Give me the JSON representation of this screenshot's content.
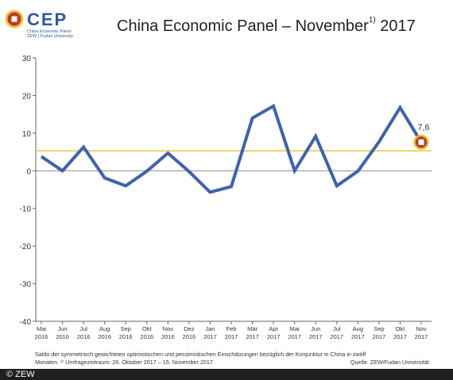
{
  "header": {
    "logo_text": "CEP",
    "logo_sub_1": "China Economic Panel",
    "logo_sub_2": "ZEW | Fudan University",
    "title_main": "China Economic Panel – November",
    "title_sup": "1)",
    "title_year": "2017"
  },
  "colors": {
    "series_line": "#3d63ad",
    "average_line": "#e8c840",
    "zero_line": "#888888",
    "marker_fill": "#c0392b",
    "marker_ring": "#e8c840",
    "brand": "#2e5b9e"
  },
  "chart_data": {
    "type": "line",
    "title": "",
    "xlabel": "",
    "ylabel": "",
    "ylim": [
      -40,
      30
    ],
    "yticks": [
      30,
      20,
      10,
      0,
      -10,
      -20,
      -30,
      -40
    ],
    "grid": false,
    "categories": [
      [
        "Mai",
        "2016"
      ],
      [
        "Jun",
        "2016"
      ],
      [
        "Jul",
        "2016"
      ],
      [
        "Aug",
        "2016"
      ],
      [
        "Sep",
        "2016"
      ],
      [
        "Okt",
        "2016"
      ],
      [
        "Nov",
        "2016"
      ],
      [
        "Dez",
        "2016"
      ],
      [
        "Jan",
        "2017"
      ],
      [
        "Feb",
        "2017"
      ],
      [
        "Mär",
        "2017"
      ],
      [
        "Apr",
        "2017"
      ],
      [
        "Mai",
        "2017"
      ],
      [
        "Jun",
        "2017"
      ],
      [
        "Jul",
        "2017"
      ],
      [
        "Aug",
        "2017"
      ],
      [
        "Sep",
        "2017"
      ],
      [
        "Okt",
        "2017"
      ],
      [
        "Nov",
        "2017"
      ]
    ],
    "series": [
      {
        "values": [
          3.8,
          0.0,
          6.3,
          -1.9,
          -4.0,
          -0.1,
          4.7,
          -0.2,
          -5.7,
          -4.2,
          14.0,
          17.2,
          0.0,
          9.2,
          -4.0,
          -0.1,
          7.7,
          16.8,
          7.6
        ]
      }
    ],
    "reference_line": {
      "value": 5.3
    },
    "last_value_label": "7,6"
  },
  "footer": {
    "note_line1": "Saldo der symmetrisch gewichteten optimistischen und pessimistischen Einschätzungen bezüglich der Konjunktur in China in zwölf",
    "note_line2": "Monaten. ¹⁾ Umfragezeitraum: 26. Oktober 2017 – 15. November 2017.",
    "source": "Quelle: ZEW/Fudan Universität",
    "copyright": "© ZEW"
  }
}
